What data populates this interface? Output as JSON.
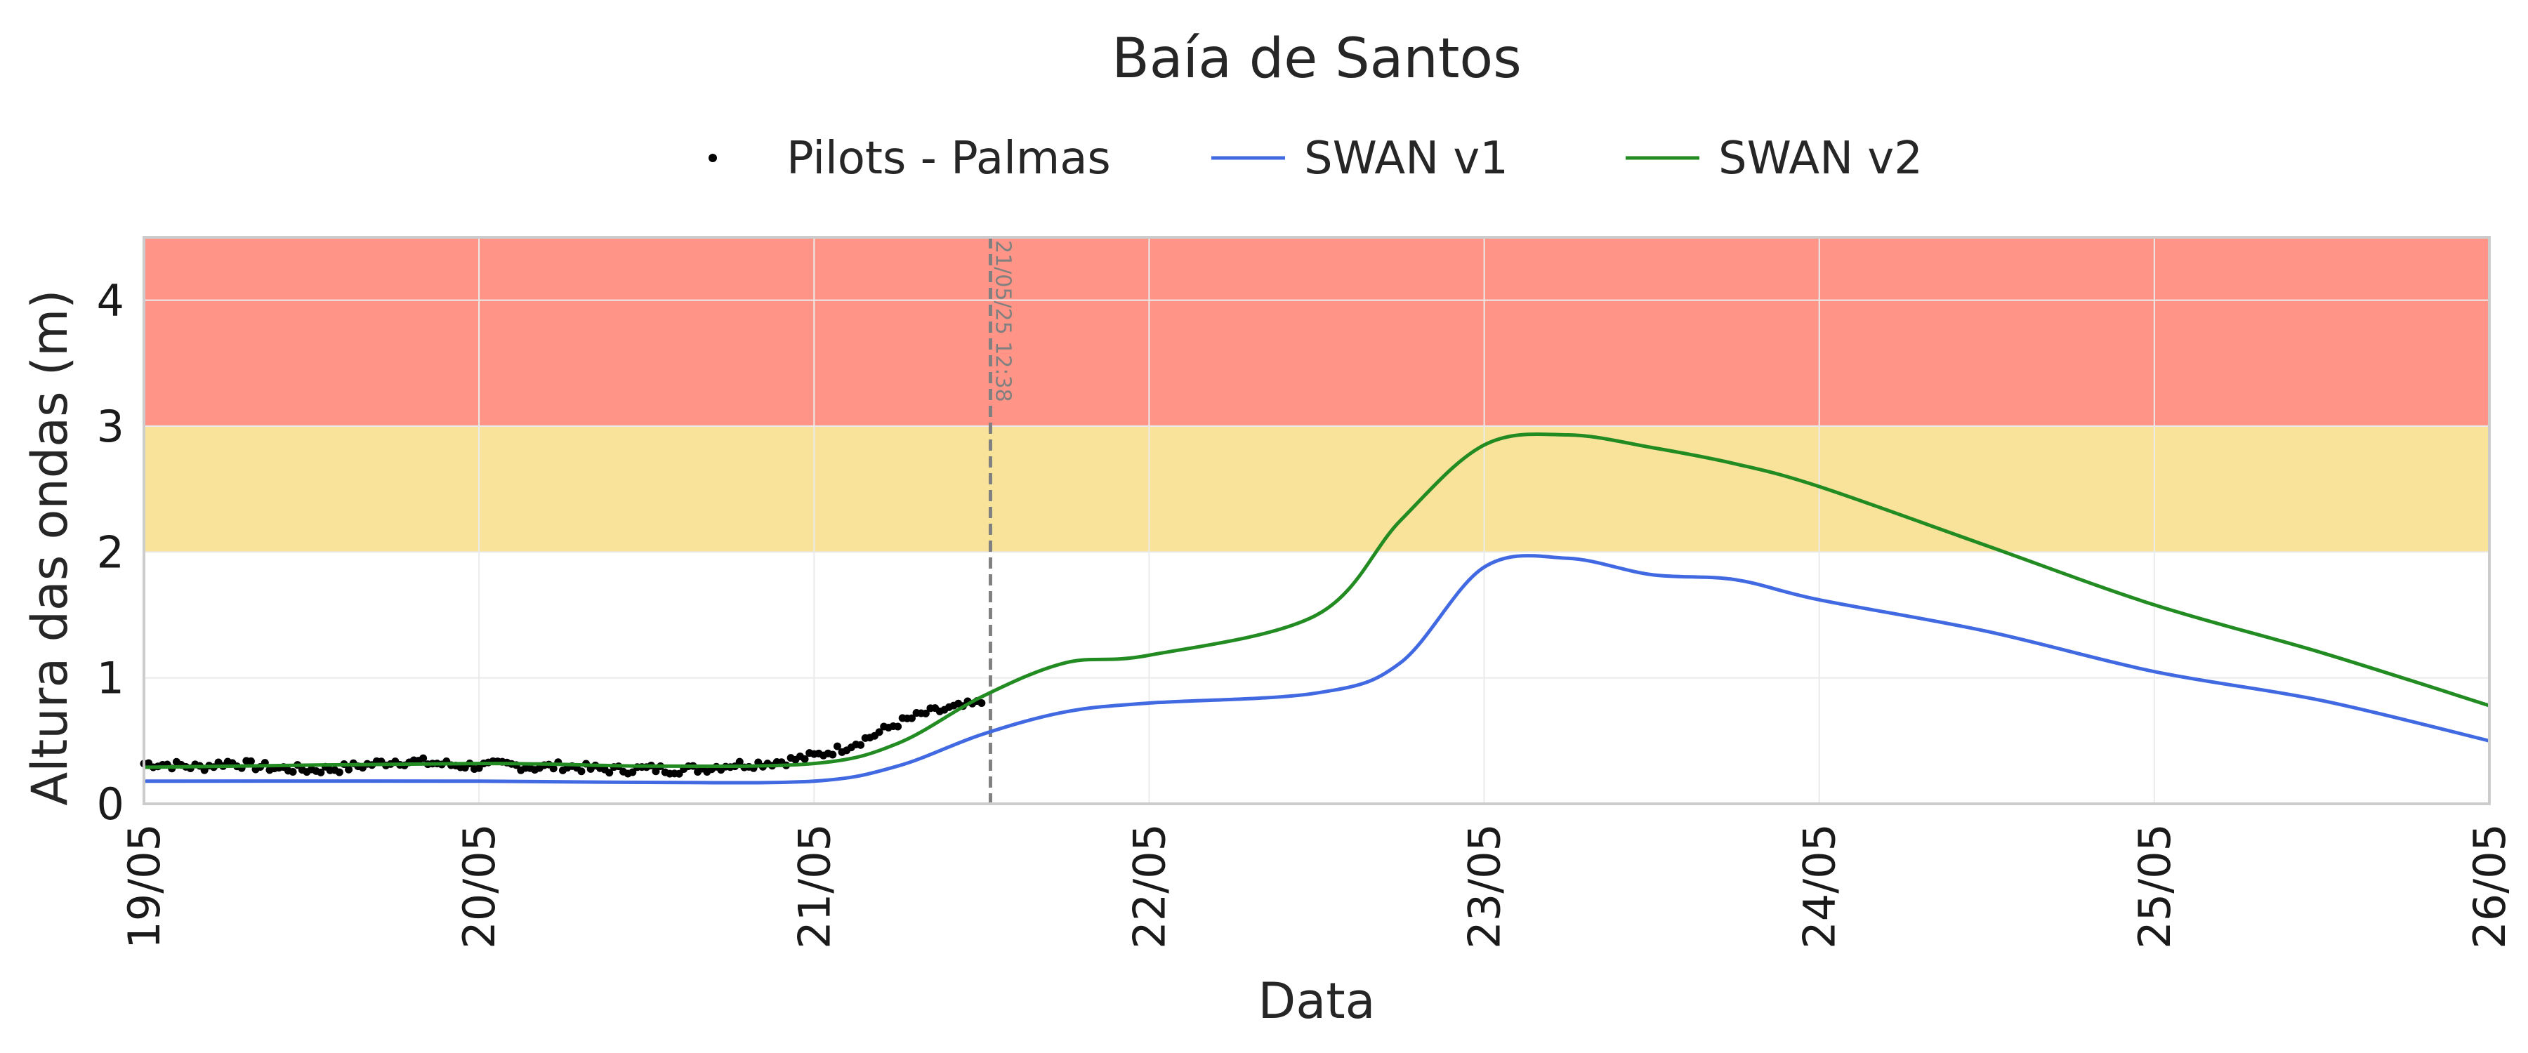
{
  "chart_data": {
    "type": "line",
    "title": "Baía de Santos",
    "xlabel": "Data",
    "ylabel": "Altura das ondas (m)",
    "ylim": [
      0,
      4.5
    ],
    "xlim": [
      "19/05",
      "26/05"
    ],
    "x_ticks": [
      "19/05",
      "20/05",
      "21/05",
      "22/05",
      "23/05",
      "24/05",
      "25/05",
      "26/05"
    ],
    "y_ticks": [
      0,
      1,
      2,
      3,
      4
    ],
    "grid": true,
    "legend": {
      "placement": "top-center",
      "entries": [
        "Pilots - Palmas",
        "SWAN v1",
        "SWAN v2"
      ]
    },
    "bands": [
      {
        "from": 2,
        "to": 3,
        "color": "#F9E29A"
      },
      {
        "from": 3,
        "to": 4.5,
        "color": "#FF9487"
      }
    ],
    "vertical_line": {
      "date": "21/05/25 12:38",
      "label": "21/05/25 12:38",
      "color": "#808080"
    },
    "series": [
      {
        "name": "Pilots - Palmas",
        "kind": "scatter",
        "color": "#000000",
        "points": [
          [
            "19/05 00:00",
            0.32
          ],
          [
            "19/05 02:00",
            0.31
          ],
          [
            "19/05 04:00",
            0.29
          ],
          [
            "19/05 06:00",
            0.33
          ],
          [
            "19/05 08:00",
            0.3
          ],
          [
            "19/05 10:00",
            0.28
          ],
          [
            "19/05 12:00",
            0.27
          ],
          [
            "19/05 14:00",
            0.28
          ],
          [
            "19/05 16:00",
            0.31
          ],
          [
            "19/05 18:00",
            0.34
          ],
          [
            "19/05 20:00",
            0.33
          ],
          [
            "19/05 22:00",
            0.31
          ],
          [
            "20/05 00:00",
            0.3
          ],
          [
            "20/05 02:00",
            0.31
          ],
          [
            "20/05 04:00",
            0.29
          ],
          [
            "20/05 06:00",
            0.3
          ],
          [
            "20/05 08:00",
            0.28
          ],
          [
            "20/05 10:00",
            0.27
          ],
          [
            "20/05 12:00",
            0.28
          ],
          [
            "20/05 14:00",
            0.27
          ],
          [
            "20/05 16:00",
            0.28
          ],
          [
            "20/05 18:00",
            0.31
          ],
          [
            "20/05 20:00",
            0.32
          ],
          [
            "20/05 22:00",
            0.34
          ],
          [
            "21/05 00:00",
            0.38
          ],
          [
            "21/05 02:00",
            0.44
          ],
          [
            "21/05 04:00",
            0.53
          ],
          [
            "21/05 06:00",
            0.64
          ],
          [
            "21/05 08:00",
            0.72
          ],
          [
            "21/05 10:00",
            0.76
          ],
          [
            "21/05 12:00",
            0.8
          ]
        ]
      },
      {
        "name": "SWAN v1",
        "kind": "line",
        "color": "#4169E1",
        "points": [
          [
            "19/05 00:00",
            0.18
          ],
          [
            "20/05 00:00",
            0.18
          ],
          [
            "20/05 12:00",
            0.17
          ],
          [
            "21/05 00:00",
            0.18
          ],
          [
            "21/05 06:00",
            0.3
          ],
          [
            "21/05 12:00",
            0.55
          ],
          [
            "21/05 18:00",
            0.73
          ],
          [
            "22/05 00:00",
            0.8
          ],
          [
            "22/05 12:00",
            0.88
          ],
          [
            "22/05 18:00",
            1.12
          ],
          [
            "23/05 00:00",
            1.88
          ],
          [
            "23/05 06:00",
            1.95
          ],
          [
            "23/05 12:00",
            1.82
          ],
          [
            "23/05 18:00",
            1.78
          ],
          [
            "24/05 00:00",
            1.62
          ],
          [
            "24/05 12:00",
            1.37
          ],
          [
            "25/05 00:00",
            1.05
          ],
          [
            "25/05 12:00",
            0.82
          ],
          [
            "26/05 00:00",
            0.5
          ]
        ]
      },
      {
        "name": "SWAN v2",
        "kind": "line",
        "color": "#228B22",
        "points": [
          [
            "19/05 00:00",
            0.29
          ],
          [
            "20/05 00:00",
            0.32
          ],
          [
            "20/05 12:00",
            0.3
          ],
          [
            "21/05 00:00",
            0.32
          ],
          [
            "21/05 06:00",
            0.48
          ],
          [
            "21/05 12:00",
            0.85
          ],
          [
            "21/05 18:00",
            1.12
          ],
          [
            "22/05 00:00",
            1.18
          ],
          [
            "22/05 12:00",
            1.5
          ],
          [
            "22/05 18:00",
            2.25
          ],
          [
            "23/05 00:00",
            2.85
          ],
          [
            "23/05 06:00",
            2.93
          ],
          [
            "23/05 12:00",
            2.83
          ],
          [
            "23/05 18:00",
            2.7
          ],
          [
            "24/05 00:00",
            2.52
          ],
          [
            "24/05 12:00",
            2.05
          ],
          [
            "25/05 00:00",
            1.58
          ],
          [
            "25/05 12:00",
            1.2
          ],
          [
            "26/05 00:00",
            0.78
          ]
        ]
      }
    ]
  }
}
